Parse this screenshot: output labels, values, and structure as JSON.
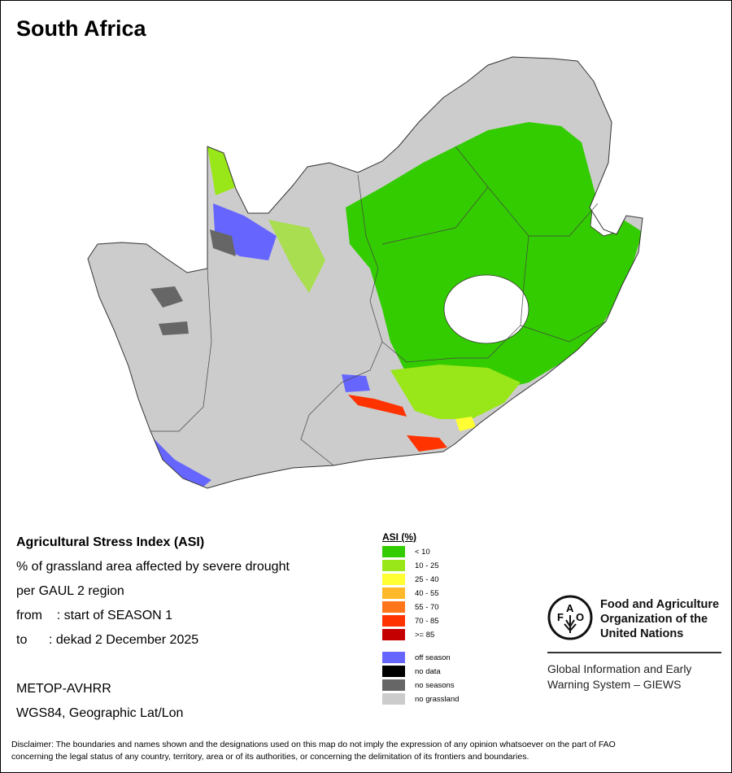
{
  "title": "South Africa",
  "info": {
    "line1": "Agricultural Stress Index (ASI)",
    "line2": "% of grassland area affected by severe drought",
    "line3": "per GAUL 2 region",
    "from": "from    : start of SEASON 1",
    "to": "to      : dekad 2 December 2025",
    "sensor": "METOP-AVHRR",
    "projection": "WGS84, Geographic Lat/Lon"
  },
  "legend": {
    "title": "ASI (%)",
    "classes": [
      {
        "label": "< 10",
        "color": "#33cc00"
      },
      {
        "label": "10 - 25",
        "color": "#99e619"
      },
      {
        "label": "25 - 40",
        "color": "#ffff33"
      },
      {
        "label": "40 - 55",
        "color": "#ffb829"
      },
      {
        "label": "55 - 70",
        "color": "#ff7519"
      },
      {
        "label": "70 - 85",
        "color": "#ff3300"
      },
      {
        "label": ">= 85",
        "color": "#c40000"
      }
    ],
    "other": [
      {
        "label": "off season",
        "color": "#6666ff"
      },
      {
        "label": "no data",
        "color": "#000000"
      },
      {
        "label": "no seasons",
        "color": "#666666"
      },
      {
        "label": "no grassland",
        "color": "#cccccc"
      }
    ]
  },
  "org": {
    "name_line1": "Food and Agriculture",
    "name_line2": "Organization of the",
    "name_line3": "United Nations",
    "logo_text": "FAO FIAT PANIS",
    "giews_line1": "Global Information and Early",
    "giews_line2": "Warning System – GIEWS"
  },
  "disclaimer_line1": "Disclaimer: The boundaries and names shown and the designations used on this map do not imply the expression of any opinion whatsoever on the part of FAO",
  "disclaimer_line2": "concerning the legal status of any country, territory, area or of its authorities, or concerning the delimitation of its frontiers and boundaries."
}
